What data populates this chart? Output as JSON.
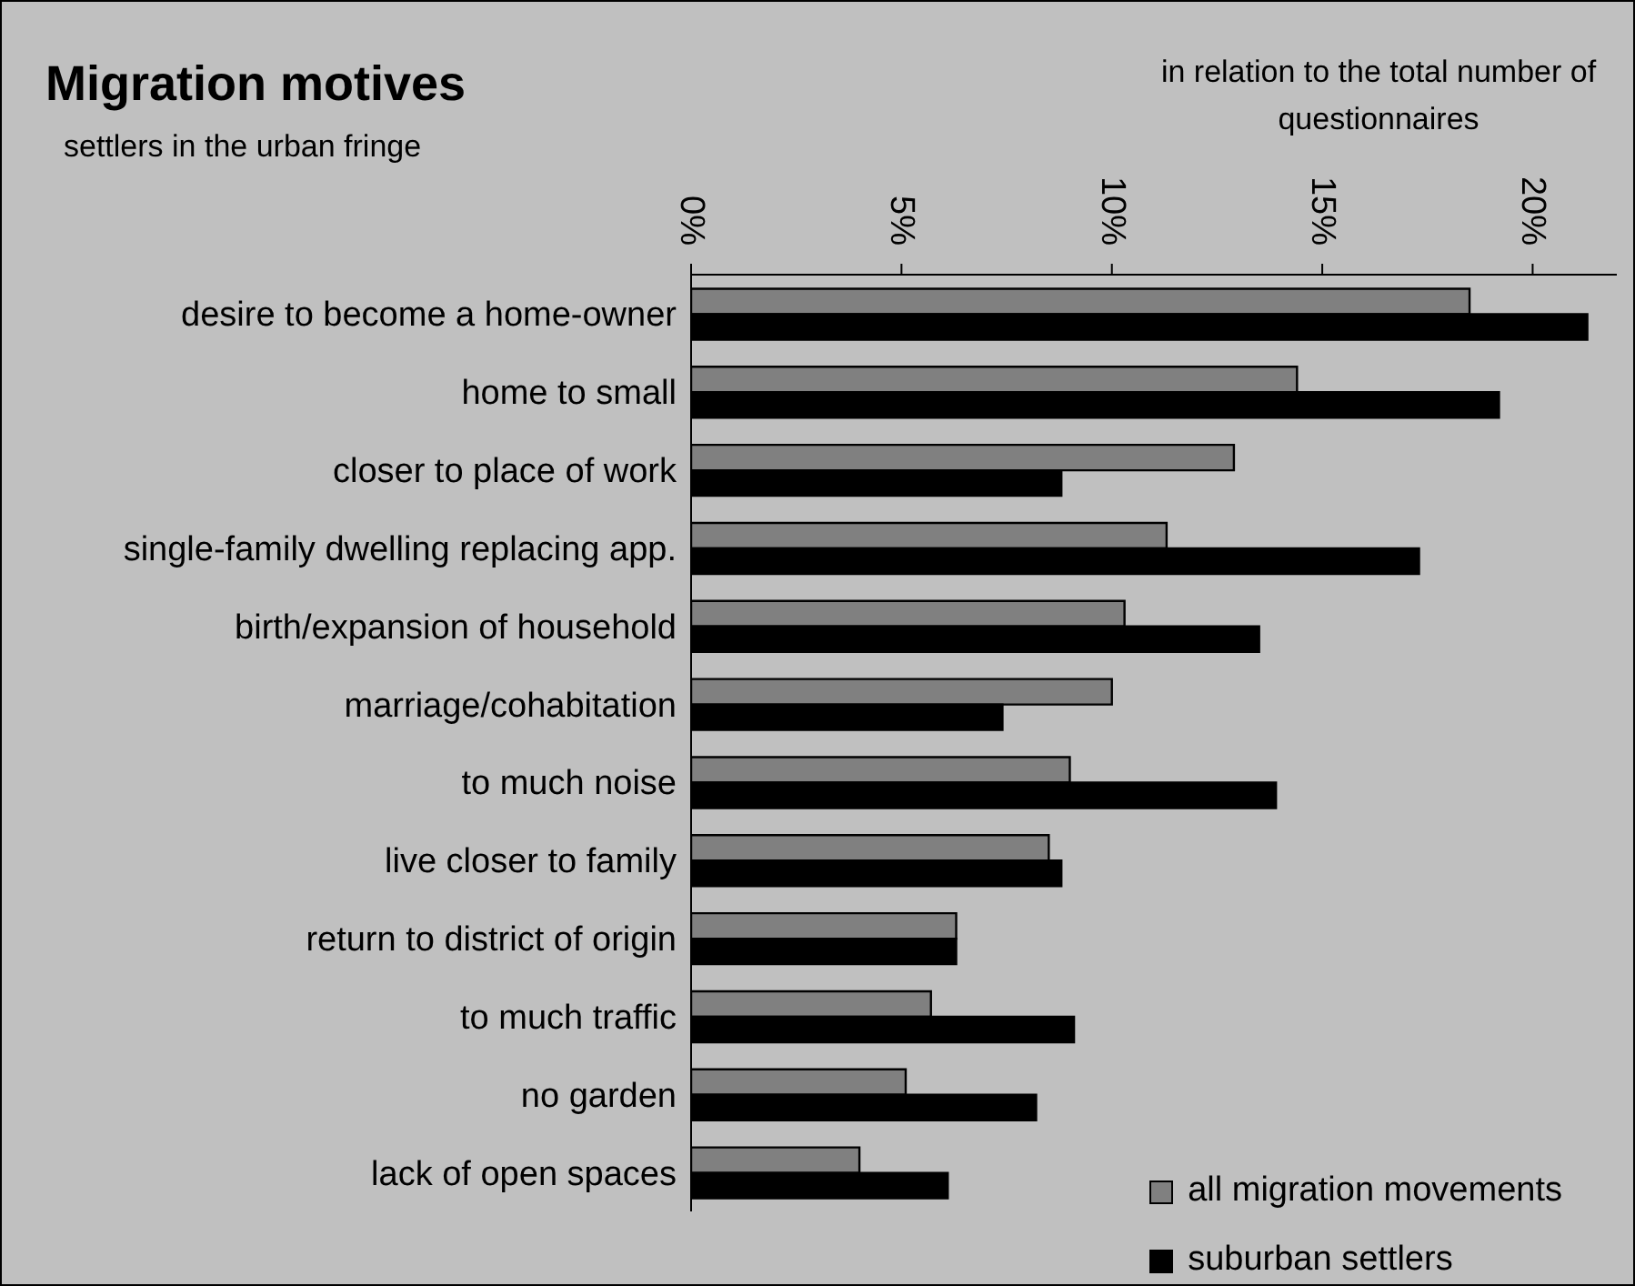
{
  "chart_data": {
    "type": "bar",
    "orientation": "horizontal",
    "title": "Migration motives",
    "subtitle": "settlers in the urban fringe",
    "xlabel": "in relation to the total number of questionnaires",
    "categories": [
      "desire to become a home-owner",
      "home to small",
      "closer to place of work",
      "single-family dwelling replacing app.",
      "birth/expansion of household",
      "marriage/cohabitation",
      "to much noise",
      "live closer to family",
      "return to district of origin",
      "to much traffic",
      "no garden",
      "lack of open spaces"
    ],
    "series": [
      {
        "name": "all migration movements",
        "color": "#808080",
        "values": [
          18.5,
          14.4,
          12.9,
          11.3,
          10.3,
          10.0,
          9.0,
          8.5,
          6.3,
          5.7,
          5.1,
          4.0
        ]
      },
      {
        "name": "suburban settlers",
        "color": "#000000",
        "values": [
          21.3,
          19.2,
          8.8,
          17.3,
          13.5,
          7.4,
          13.9,
          8.8,
          6.3,
          9.1,
          8.2,
          6.1
        ]
      }
    ],
    "xlim": [
      0,
      22
    ],
    "xticks": [
      {
        "value": 0,
        "label": "0%"
      },
      {
        "value": 5,
        "label": "5%"
      },
      {
        "value": 10,
        "label": "10%"
      },
      {
        "value": 15,
        "label": "15%"
      },
      {
        "value": 20,
        "label": "20%"
      }
    ],
    "legend": "bottom right"
  }
}
